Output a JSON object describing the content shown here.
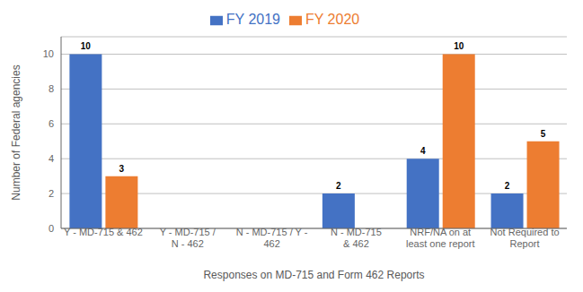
{
  "chart_data": {
    "type": "bar",
    "categories": [
      "Y - MD-715 & 462",
      "Y - MD-715 /\nN - 462",
      "N - MD-715 / Y -\n462",
      "N - MD-715\n& 462",
      "NRF/NA on at\nleast one report",
      "Not Required to\nReport"
    ],
    "series": [
      {
        "name": "FY 2019",
        "color": "#4472C4",
        "values": [
          10,
          0,
          0,
          2,
          4,
          2
        ]
      },
      {
        "name": "FY 2020",
        "color": "#ED7D31",
        "values": [
          3,
          0,
          0,
          0,
          10,
          5
        ]
      }
    ],
    "xlabel": "Responses on MD-715 and Form 462 Reports",
    "ylabel": "Number of Federal agencies",
    "ylim": [
      0,
      11
    ],
    "yticks": [
      0,
      2,
      4,
      6,
      8,
      10
    ],
    "grid": true,
    "legend": "top",
    "data_labels": true
  }
}
